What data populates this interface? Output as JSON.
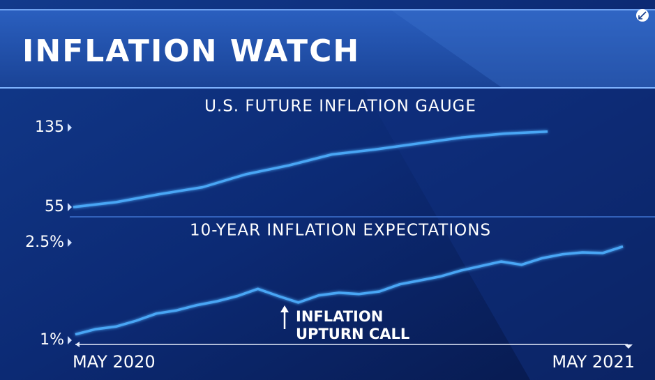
{
  "header": {
    "title": "INFLATION WATCH"
  },
  "chart_data": [
    {
      "type": "line",
      "title": "U.S. FUTURE INFLATION GAUGE",
      "values": [
        55,
        60,
        68,
        75,
        88,
        97,
        108,
        113,
        119,
        125,
        129,
        131
      ],
      "color": "#4aa6f5",
      "ylim": [
        55,
        135
      ],
      "yticks": [
        55,
        135
      ]
    },
    {
      "type": "line",
      "title": "10-YEAR INFLATION EXPECTATIONS",
      "categories": [
        "MAY 2020",
        null,
        null,
        null,
        null,
        null,
        null,
        null,
        null,
        null,
        null,
        null,
        null,
        null,
        null,
        null,
        null,
        null,
        null,
        null,
        null,
        null,
        null,
        null,
        null,
        null,
        null,
        "MAY 2021"
      ],
      "values": [
        1.09,
        1.17,
        1.21,
        1.3,
        1.41,
        1.46,
        1.54,
        1.6,
        1.68,
        1.79,
        1.68,
        1.58,
        1.69,
        1.73,
        1.71,
        1.75,
        1.86,
        1.92,
        1.98,
        2.07,
        2.14,
        2.21,
        2.16,
        2.26,
        2.32,
        2.35,
        2.34,
        2.44
      ],
      "color": "#4aa6f5",
      "ylim": [
        1,
        2.5
      ],
      "yticks": [
        {
          "value": 1,
          "label": "1%"
        },
        {
          "value": 2.5,
          "label": "2.5%"
        }
      ],
      "annotations": [
        "INFLATION",
        "UPTURN CALL"
      ]
    }
  ]
}
